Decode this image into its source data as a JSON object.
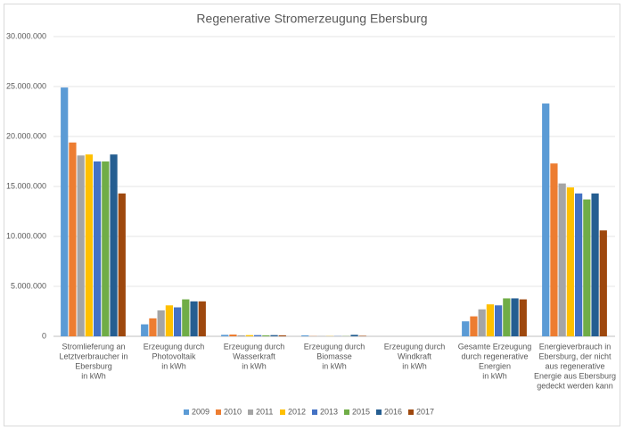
{
  "chart_data": {
    "type": "bar",
    "title": "Regenerative Stromerzeugung Ebersburg",
    "categories": [
      [
        "Stromlieferung an",
        "Letztverbraucher in",
        "Ebersburg",
        "in kWh"
      ],
      [
        "Erzeugung durch",
        "Photovoltaik",
        "in kWh"
      ],
      [
        "Erzeugung durch",
        "Wasserkraft",
        "in kWh"
      ],
      [
        "Erzeugung durch",
        "Biomasse",
        "in kWh"
      ],
      [
        "Erzeugung durch",
        "Windkraft",
        "in kWh"
      ],
      [
        "Gesamte Erzeugung",
        "durch regenerative",
        "Energien",
        "in kWh"
      ],
      [
        "Energieverbrauch in",
        "Ebersburg, der nicht",
        "aus regenerative",
        "Energie aus Ebersburg",
        "gedeckt werden kann"
      ]
    ],
    "series": [
      {
        "name": "2009",
        "color": "#5b9bd5",
        "values": [
          24900000,
          1200000,
          150000,
          100000,
          0,
          1500000,
          23300000
        ]
      },
      {
        "name": "2010",
        "color": "#ed7d31",
        "values": [
          19400000,
          1800000,
          180000,
          20000,
          0,
          2000000,
          17300000
        ]
      },
      {
        "name": "2011",
        "color": "#a5a5a5",
        "values": [
          18100000,
          2600000,
          100000,
          20000,
          0,
          2700000,
          15300000
        ]
      },
      {
        "name": "2012",
        "color": "#ffc000",
        "values": [
          18200000,
          3100000,
          120000,
          20000,
          0,
          3200000,
          14900000
        ]
      },
      {
        "name": "2013",
        "color": "#4472c4",
        "values": [
          17500000,
          2900000,
          120000,
          20000,
          0,
          3100000,
          14300000
        ]
      },
      {
        "name": "2015",
        "color": "#70ad47",
        "values": [
          17500000,
          3700000,
          100000,
          20000,
          0,
          3800000,
          13700000
        ]
      },
      {
        "name": "2016",
        "color": "#255e91",
        "values": [
          18200000,
          3500000,
          120000,
          150000,
          0,
          3800000,
          14300000
        ]
      },
      {
        "name": "2017",
        "color": "#9e480e",
        "values": [
          14300000,
          3500000,
          100000,
          50000,
          0,
          3700000,
          10600000
        ]
      }
    ],
    "ylim": [
      0,
      30000000
    ],
    "yticks": [
      0,
      {
        "value": 5000000,
        "label": "5.000.000"
      },
      {
        "value": 10000000,
        "label": "10.000.000"
      },
      {
        "value": 15000000,
        "label": "15.000.000"
      },
      {
        "value": 20000000,
        "label": "20.000.000"
      },
      {
        "value": 25000000,
        "label": "25.000.000"
      },
      {
        "value": 30000000,
        "label": "30.000.000"
      }
    ],
    "grid": true,
    "legend": "bottom"
  }
}
